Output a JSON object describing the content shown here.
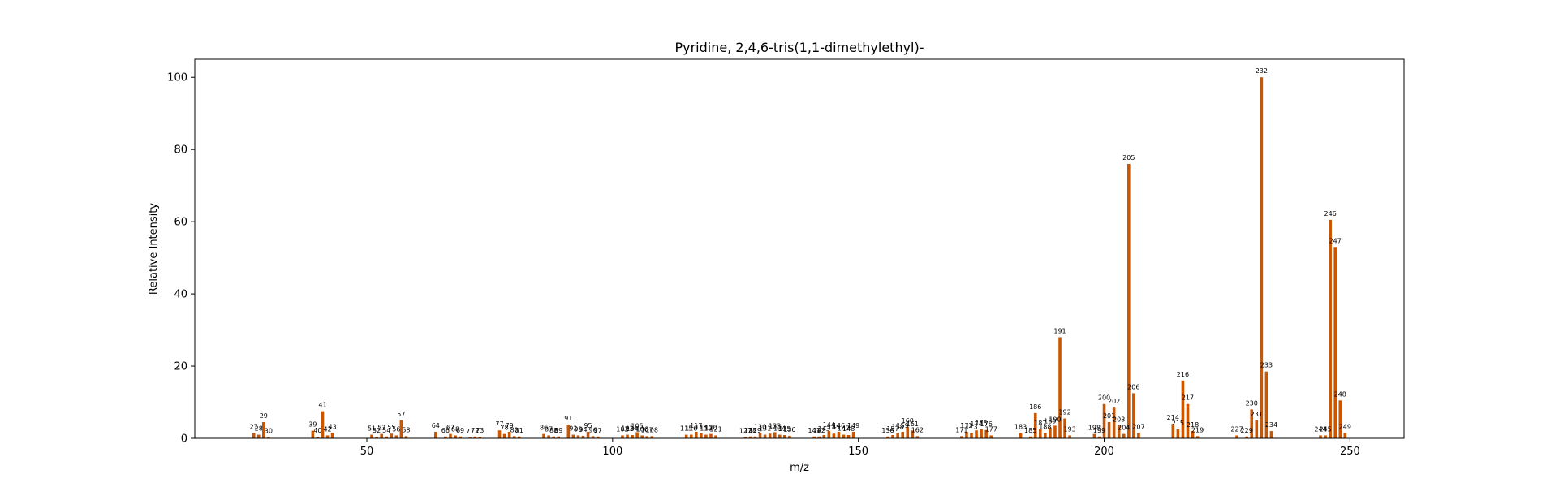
{
  "chart_data": {
    "type": "bar",
    "title": "Pyridine, 2,4,6-tris(1,1-dimethylethyl)-",
    "xlabel": "m/z",
    "ylabel": "Relative Intensity",
    "xlim": [
      15,
      261
    ],
    "ylim": [
      0,
      105
    ],
    "xticks": [
      50,
      100,
      150,
      200,
      250
    ],
    "yticks": [
      0,
      20,
      40,
      60,
      80,
      100
    ],
    "bar_color": "#cc5500",
    "grid": false,
    "legend": "none",
    "peaks": [
      {
        "mz": 27,
        "intensity": 1.5
      },
      {
        "mz": 28,
        "intensity": 1.0
      },
      {
        "mz": 29,
        "intensity": 4.5
      },
      {
        "mz": 30,
        "intensity": 0.3
      },
      {
        "mz": 39,
        "intensity": 2.1
      },
      {
        "mz": 40,
        "intensity": 0.4
      },
      {
        "mz": 41,
        "intensity": 7.5
      },
      {
        "mz": 42,
        "intensity": 0.8
      },
      {
        "mz": 43,
        "intensity": 1.5
      },
      {
        "mz": 51,
        "intensity": 1.0
      },
      {
        "mz": 52,
        "intensity": 0.4
      },
      {
        "mz": 53,
        "intensity": 1.2
      },
      {
        "mz": 54,
        "intensity": 0.5
      },
      {
        "mz": 55,
        "intensity": 1.3
      },
      {
        "mz": 56,
        "intensity": 0.8
      },
      {
        "mz": 57,
        "intensity": 5.0
      },
      {
        "mz": 58,
        "intensity": 0.6
      },
      {
        "mz": 64,
        "intensity": 1.8
      },
      {
        "mz": 66,
        "intensity": 0.5
      },
      {
        "mz": 67,
        "intensity": 1.2
      },
      {
        "mz": 68,
        "intensity": 0.8
      },
      {
        "mz": 69,
        "intensity": 0.5
      },
      {
        "mz": 71,
        "intensity": 0.2
      },
      {
        "mz": 72,
        "intensity": 0.5
      },
      {
        "mz": 73,
        "intensity": 0.4
      },
      {
        "mz": 77,
        "intensity": 2.2
      },
      {
        "mz": 78,
        "intensity": 1.2
      },
      {
        "mz": 79,
        "intensity": 1.8
      },
      {
        "mz": 80,
        "intensity": 0.6
      },
      {
        "mz": 81,
        "intensity": 0.5
      },
      {
        "mz": 86,
        "intensity": 1.2
      },
      {
        "mz": 87,
        "intensity": 0.8
      },
      {
        "mz": 88,
        "intensity": 0.5
      },
      {
        "mz": 89,
        "intensity": 0.5
      },
      {
        "mz": 91,
        "intensity": 3.8
      },
      {
        "mz": 92,
        "intensity": 1.0
      },
      {
        "mz": 93,
        "intensity": 0.8
      },
      {
        "mz": 94,
        "intensity": 0.7
      },
      {
        "mz": 95,
        "intensity": 1.8
      },
      {
        "mz": 96,
        "intensity": 0.6
      },
      {
        "mz": 97,
        "intensity": 0.5
      },
      {
        "mz": 102,
        "intensity": 0.8
      },
      {
        "mz": 103,
        "intensity": 1.0
      },
      {
        "mz": 104,
        "intensity": 0.9
      },
      {
        "mz": 105,
        "intensity": 1.7
      },
      {
        "mz": 106,
        "intensity": 0.8
      },
      {
        "mz": 107,
        "intensity": 0.6
      },
      {
        "mz": 108,
        "intensity": 0.6
      },
      {
        "mz": 115,
        "intensity": 1.0
      },
      {
        "mz": 116,
        "intensity": 1.0
      },
      {
        "mz": 117,
        "intensity": 1.8
      },
      {
        "mz": 118,
        "intensity": 1.4
      },
      {
        "mz": 119,
        "intensity": 1.0
      },
      {
        "mz": 120,
        "intensity": 1.2
      },
      {
        "mz": 121,
        "intensity": 0.8
      },
      {
        "mz": 127,
        "intensity": 0.3
      },
      {
        "mz": 128,
        "intensity": 0.5
      },
      {
        "mz": 129,
        "intensity": 0.5
      },
      {
        "mz": 130,
        "intensity": 1.5
      },
      {
        "mz": 131,
        "intensity": 1.0
      },
      {
        "mz": 132,
        "intensity": 1.3
      },
      {
        "mz": 133,
        "intensity": 1.7
      },
      {
        "mz": 134,
        "intensity": 1.0
      },
      {
        "mz": 135,
        "intensity": 0.9
      },
      {
        "mz": 136,
        "intensity": 0.7
      },
      {
        "mz": 141,
        "intensity": 0.5
      },
      {
        "mz": 142,
        "intensity": 0.5
      },
      {
        "mz": 143,
        "intensity": 0.9
      },
      {
        "mz": 144,
        "intensity": 2.0
      },
      {
        "mz": 145,
        "intensity": 1.3
      },
      {
        "mz": 146,
        "intensity": 1.8
      },
      {
        "mz": 147,
        "intensity": 1.0
      },
      {
        "mz": 148,
        "intensity": 0.9
      },
      {
        "mz": 149,
        "intensity": 1.8
      },
      {
        "mz": 156,
        "intensity": 0.5
      },
      {
        "mz": 157,
        "intensity": 0.9
      },
      {
        "mz": 158,
        "intensity": 1.5
      },
      {
        "mz": 159,
        "intensity": 1.8
      },
      {
        "mz": 160,
        "intensity": 3.2
      },
      {
        "mz": 161,
        "intensity": 2.2
      },
      {
        "mz": 162,
        "intensity": 0.6
      },
      {
        "mz": 171,
        "intensity": 0.6
      },
      {
        "mz": 172,
        "intensity": 1.8
      },
      {
        "mz": 173,
        "intensity": 1.5
      },
      {
        "mz": 174,
        "intensity": 2.2
      },
      {
        "mz": 175,
        "intensity": 2.5
      },
      {
        "mz": 176,
        "intensity": 2.3
      },
      {
        "mz": 177,
        "intensity": 0.8
      },
      {
        "mz": 183,
        "intensity": 1.5
      },
      {
        "mz": 185,
        "intensity": 0.5
      },
      {
        "mz": 186,
        "intensity": 7.0
      },
      {
        "mz": 187,
        "intensity": 2.5
      },
      {
        "mz": 188,
        "intensity": 1.5
      },
      {
        "mz": 189,
        "intensity": 3.0
      },
      {
        "mz": 190,
        "intensity": 3.5
      },
      {
        "mz": 191,
        "intensity": 28.0
      },
      {
        "mz": 192,
        "intensity": 5.5
      },
      {
        "mz": 193,
        "intensity": 0.8
      },
      {
        "mz": 198,
        "intensity": 1.2
      },
      {
        "mz": 199,
        "intensity": 0.5
      },
      {
        "mz": 200,
        "intensity": 9.5
      },
      {
        "mz": 201,
        "intensity": 4.5
      },
      {
        "mz": 202,
        "intensity": 8.5
      },
      {
        "mz": 203,
        "intensity": 3.5
      },
      {
        "mz": 204,
        "intensity": 1.2
      },
      {
        "mz": 205,
        "intensity": 76.0
      },
      {
        "mz": 206,
        "intensity": 12.5
      },
      {
        "mz": 207,
        "intensity": 1.5
      },
      {
        "mz": 214,
        "intensity": 4.0
      },
      {
        "mz": 215,
        "intensity": 2.5
      },
      {
        "mz": 216,
        "intensity": 16.0
      },
      {
        "mz": 217,
        "intensity": 9.5
      },
      {
        "mz": 218,
        "intensity": 2.0
      },
      {
        "mz": 219,
        "intensity": 0.6
      },
      {
        "mz": 227,
        "intensity": 0.8
      },
      {
        "mz": 229,
        "intensity": 0.5
      },
      {
        "mz": 230,
        "intensity": 8.0
      },
      {
        "mz": 231,
        "intensity": 5.0
      },
      {
        "mz": 232,
        "intensity": 100.0
      },
      {
        "mz": 233,
        "intensity": 18.5
      },
      {
        "mz": 234,
        "intensity": 2.0
      },
      {
        "mz": 244,
        "intensity": 0.8
      },
      {
        "mz": 245,
        "intensity": 0.8
      },
      {
        "mz": 246,
        "intensity": 60.5
      },
      {
        "mz": 247,
        "intensity": 53.0
      },
      {
        "mz": 248,
        "intensity": 10.5
      },
      {
        "mz": 249,
        "intensity": 1.5
      }
    ]
  }
}
